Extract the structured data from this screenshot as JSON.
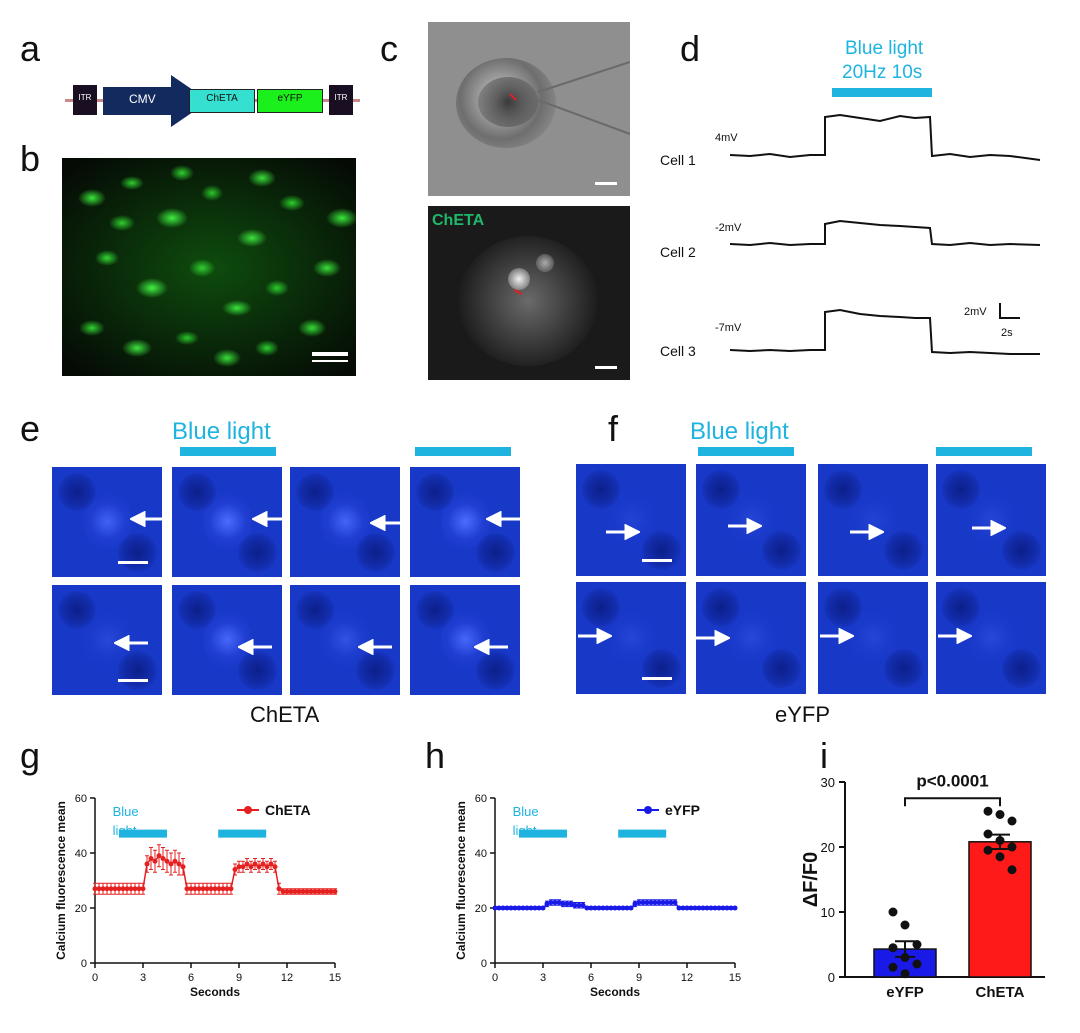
{
  "panels": {
    "a": "a",
    "b": "b",
    "c": "c",
    "d": "d",
    "e": "e",
    "f": "f",
    "g": "g",
    "h": "h",
    "i": "i"
  },
  "construct": {
    "left_itr": "ITR",
    "promoter": "CMV",
    "gene1": "ChETA",
    "gene2": "eYFP",
    "right_itr": "ITR"
  },
  "colors": {
    "gfp": "#2bd62b",
    "cyan": "#1fb3e0",
    "blue_tile": "#1838c8",
    "cheta_red": "#e52020",
    "eyfp_blue": "#1a1ae8"
  },
  "panel_c": {
    "fluor_label": "ChETA"
  },
  "panel_d": {
    "stim_line1": "Blue light",
    "stim_line2": "20Hz 10s",
    "cells": [
      {
        "name": "Cell 1",
        "baseline": "4mV"
      },
      {
        "name": "Cell 2",
        "baseline": "-2mV"
      },
      {
        "name": "Cell 3",
        "baseline": "-7mV"
      }
    ],
    "scale_v": "2mV",
    "scale_t": "2s"
  },
  "panel_e": {
    "stim_label": "Blue light",
    "caption": "ChETA"
  },
  "panel_f": {
    "stim_label": "Blue light",
    "caption": "eYFP"
  },
  "chart_data": [
    {
      "panel": "g",
      "type": "line",
      "ylabel": "Calcium fluorescence mean",
      "xlabel": "Seconds",
      "xlim": [
        0,
        15
      ],
      "ylim": [
        0,
        60
      ],
      "xticks": [
        0,
        3,
        6,
        9,
        12,
        15
      ],
      "yticks": [
        0,
        20,
        40,
        60
      ],
      "stim_label": "Blue light",
      "stim_periods": [
        [
          1.5,
          4.5
        ],
        [
          7.7,
          10.7
        ]
      ],
      "series": [
        {
          "name": "ChETA",
          "color": "#e52020",
          "x": [
            0,
            0.25,
            0.5,
            0.75,
            1,
            1.25,
            1.5,
            1.75,
            2,
            2.25,
            2.5,
            2.75,
            3,
            3.25,
            3.5,
            3.75,
            4,
            4.25,
            4.5,
            4.75,
            5,
            5.25,
            5.5,
            5.75,
            6,
            6.25,
            6.5,
            6.75,
            7,
            7.25,
            7.5,
            7.75,
            8,
            8.25,
            8.5,
            8.75,
            9,
            9.25,
            9.5,
            9.75,
            10,
            10.25,
            10.5,
            10.75,
            11,
            11.25,
            11.5,
            11.75,
            12,
            12.25,
            12.5,
            12.75,
            13,
            13.25,
            13.5,
            13.75,
            14,
            14.25,
            14.5,
            14.75,
            15
          ],
          "values": [
            27,
            27,
            27,
            27,
            27,
            27,
            27,
            27,
            27,
            27,
            27,
            27,
            27,
            36,
            38,
            37,
            39,
            38,
            37,
            36,
            37,
            36,
            35,
            27,
            27,
            27,
            27,
            27,
            27,
            27,
            27,
            27,
            27,
            27,
            27,
            34,
            35,
            35,
            36,
            35,
            36,
            35,
            36,
            35,
            36,
            35,
            27,
            26,
            26,
            26,
            26,
            26,
            26,
            26,
            26,
            26,
            26,
            26,
            26,
            26,
            26
          ],
          "error": [
            2,
            2,
            2,
            2,
            2,
            2,
            2,
            2,
            2,
            2,
            2,
            2,
            2,
            3,
            4,
            4,
            4,
            4,
            4,
            4,
            4,
            4,
            3,
            2,
            2,
            2,
            2,
            2,
            2,
            2,
            2,
            2,
            2,
            2,
            2,
            2,
            2,
            2,
            2,
            2,
            2,
            2,
            2,
            2,
            2,
            2,
            2,
            1,
            1,
            1,
            1,
            1,
            1,
            1,
            1,
            1,
            1,
            1,
            1,
            1,
            1
          ]
        }
      ]
    },
    {
      "panel": "h",
      "type": "line",
      "ylabel": "Calcium fluorescence mean",
      "xlabel": "Seconds",
      "xlim": [
        0,
        15
      ],
      "ylim": [
        0,
        60
      ],
      "xticks": [
        0,
        3,
        6,
        9,
        12,
        15
      ],
      "yticks": [
        0,
        20,
        40,
        60
      ],
      "stim_label": "Blue light",
      "stim_periods": [
        [
          1.5,
          4.5
        ],
        [
          7.7,
          10.7
        ]
      ],
      "series": [
        {
          "name": "eYFP",
          "color": "#1a1ae8",
          "x": [
            0,
            0.25,
            0.5,
            0.75,
            1,
            1.25,
            1.5,
            1.75,
            2,
            2.25,
            2.5,
            2.75,
            3,
            3.25,
            3.5,
            3.75,
            4,
            4.25,
            4.5,
            4.75,
            5,
            5.25,
            5.5,
            5.75,
            6,
            6.25,
            6.5,
            6.75,
            7,
            7.25,
            7.5,
            7.75,
            8,
            8.25,
            8.5,
            8.75,
            9,
            9.25,
            9.5,
            9.75,
            10,
            10.25,
            10.5,
            10.75,
            11,
            11.25,
            11.5,
            11.75,
            12,
            12.25,
            12.5,
            12.75,
            13,
            13.25,
            13.5,
            13.75,
            14,
            14.25,
            14.5,
            14.75,
            15
          ],
          "values": [
            20,
            20,
            20,
            20,
            20,
            20,
            20,
            20,
            20,
            20,
            20,
            20,
            20,
            21.5,
            22,
            22,
            22,
            21.5,
            21.5,
            21.5,
            21,
            21,
            21,
            20,
            20,
            20,
            20,
            20,
            20,
            20,
            20,
            20,
            20,
            20,
            20,
            21.5,
            22,
            22,
            22,
            22,
            22,
            22,
            22,
            22,
            22,
            22,
            20,
            20,
            20,
            20,
            20,
            20,
            20,
            20,
            20,
            20,
            20,
            20,
            20,
            20,
            20
          ],
          "error": [
            0.5,
            0.5,
            0.5,
            0.5,
            0.5,
            0.5,
            0.5,
            0.5,
            0.5,
            0.5,
            0.5,
            0.5,
            0.5,
            1,
            1,
            1,
            1,
            1,
            1,
            1,
            1,
            1,
            1,
            0.5,
            0.5,
            0.5,
            0.5,
            0.5,
            0.5,
            0.5,
            0.5,
            0.5,
            0.5,
            0.5,
            0.5,
            1,
            1,
            1,
            1,
            1,
            1,
            1,
            1,
            1,
            1,
            1,
            0.5,
            0.5,
            0.5,
            0.5,
            0.5,
            0.5,
            0.5,
            0.5,
            0.5,
            0.5,
            0.5,
            0.5,
            0.5,
            0.5,
            0.5
          ]
        }
      ]
    },
    {
      "panel": "i",
      "type": "bar",
      "ylabel": "ΔF/F0",
      "ylim": [
        0,
        30
      ],
      "yticks": [
        0,
        10,
        20,
        30
      ],
      "significance": "p<0.0001",
      "categories": [
        "eYFP",
        "ChETA"
      ],
      "values": [
        4.3,
        20.8
      ],
      "sem": [
        1.2,
        1.1
      ],
      "colors": [
        "#1a1ae8",
        "#ff1a1a"
      ],
      "points": [
        [
          10,
          8,
          5,
          4.5,
          3,
          2,
          1.5,
          0.5
        ],
        [
          25.5,
          25,
          24,
          22,
          21,
          20,
          19.5,
          18.5,
          16.5
        ]
      ]
    }
  ]
}
